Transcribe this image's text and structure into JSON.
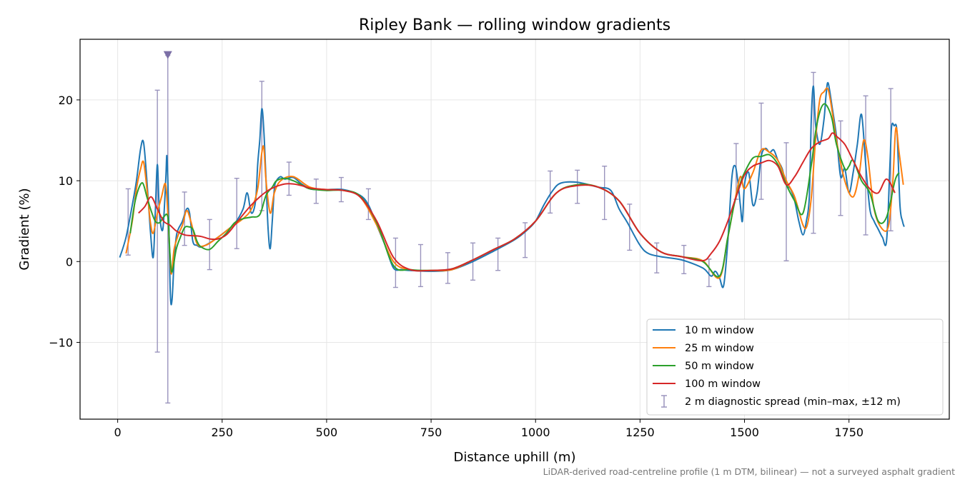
{
  "chart_data": {
    "type": "line",
    "title": "Ripley Bank — rolling window gradients",
    "xlabel": "Distance uphill (m)",
    "ylabel": "Gradient (%)",
    "xlim": [
      -90,
      1990
    ],
    "ylim": [
      -19.5,
      27.5
    ],
    "xticks": [
      0,
      250,
      500,
      750,
      1000,
      1250,
      1500,
      1750
    ],
    "yticks": [
      -10,
      0,
      10,
      20
    ],
    "ytick_labels": [
      "−10",
      "0",
      "10",
      "20"
    ],
    "grid": true,
    "legend_position": "lower-right",
    "series": [
      {
        "name": "10 m window",
        "color": "#1f77b4",
        "x": [
          5,
          20,
          35,
          45,
          55,
          62,
          70,
          78,
          85,
          90,
          95,
          100,
          108,
          115,
          118,
          122,
          126,
          130,
          135,
          140,
          145,
          155,
          165,
          172,
          180,
          190,
          200,
          220,
          240,
          260,
          280,
          300,
          310,
          320,
          330,
          335,
          340,
          345,
          350,
          355,
          360,
          365,
          370,
          375,
          380,
          390,
          400,
          420,
          440,
          460,
          480,
          500,
          540,
          580,
          600,
          620,
          640,
          660,
          680,
          700,
          750,
          800,
          850,
          900,
          950,
          980,
          1000,
          1020,
          1040,
          1060,
          1100,
          1150,
          1180,
          1200,
          1220,
          1250,
          1270,
          1300,
          1350,
          1400,
          1420,
          1430,
          1440,
          1450,
          1460,
          1470,
          1478,
          1485,
          1490,
          1495,
          1500,
          1510,
          1520,
          1530,
          1540,
          1550,
          1560,
          1570,
          1580,
          1590,
          1600,
          1610,
          1620,
          1630,
          1640,
          1648,
          1655,
          1660,
          1665,
          1670,
          1680,
          1690,
          1695,
          1700,
          1710,
          1720,
          1730,
          1740,
          1750,
          1760,
          1770,
          1780,
          1790,
          1800,
          1810,
          1820,
          1830,
          1840,
          1848,
          1852,
          1858,
          1865,
          1872,
          1878,
          1882
        ],
        "y": [
          0.5,
          3,
          7,
          10,
          14,
          14.7,
          10,
          4,
          0.5,
          6,
          12,
          6,
          4,
          10,
          13,
          6,
          -4,
          -4.8,
          0,
          3,
          4,
          5,
          6.5,
          6,
          2.5,
          2,
          1.8,
          2.3,
          3,
          3.8,
          4.7,
          6.5,
          8.5,
          6,
          7.5,
          12,
          15,
          18.9,
          16,
          10,
          4,
          1.6,
          5,
          9,
          10,
          10.5,
          10.2,
          10.4,
          9.6,
          9,
          8.9,
          8.9,
          8.9,
          8.2,
          7,
          4.5,
          2,
          -0.8,
          -1,
          -1.1,
          -1.2,
          -1,
          0,
          1.3,
          2.7,
          3.9,
          5,
          7,
          8.7,
          9.7,
          9.8,
          9.2,
          8.8,
          6.5,
          4.8,
          2,
          1,
          0.6,
          0.2,
          -0.8,
          -1.8,
          -1.2,
          -2,
          -3,
          2.5,
          10.5,
          11.8,
          9.5,
          7,
          5,
          9.5,
          11,
          7,
          8.5,
          13,
          14,
          13.5,
          13.8,
          12.5,
          11.5,
          9.5,
          9,
          7.5,
          5,
          3.3,
          5,
          8,
          18,
          21.7,
          17,
          14.5,
          17.5,
          20.5,
          22.1,
          19,
          15.5,
          10.5,
          11.5,
          8.5,
          11,
          14.5,
          18.2,
          12,
          6.5,
          5,
          4,
          3,
          2.6,
          12,
          16.7,
          16.8,
          16,
          7,
          5,
          4.3
        ]
      },
      {
        "name": "25 m window",
        "color": "#ff7f0e",
        "x": [
          20,
          35,
          45,
          55,
          62,
          70,
          78,
          85,
          95,
          105,
          115,
          122,
          128,
          135,
          145,
          155,
          165,
          175,
          190,
          210,
          240,
          270,
          300,
          320,
          335,
          345,
          350,
          355,
          365,
          375,
          390,
          420,
          460,
          500,
          540,
          580,
          620,
          660,
          700,
          750,
          800,
          850,
          900,
          950,
          1000,
          1050,
          1100,
          1150,
          1200,
          1250,
          1300,
          1350,
          1400,
          1440,
          1460,
          1475,
          1490,
          1500,
          1520,
          1540,
          1560,
          1580,
          1600,
          1620,
          1640,
          1650,
          1660,
          1670,
          1680,
          1690,
          1700,
          1710,
          1720,
          1740,
          1760,
          1775,
          1785,
          1795,
          1810,
          1830,
          1845,
          1855,
          1862,
          1870,
          1880
        ],
        "y": [
          1,
          5,
          9,
          11.5,
          12.3,
          9,
          5,
          3.5,
          6,
          8,
          9.5,
          4,
          -1.5,
          1.5,
          3.3,
          4.5,
          6.3,
          5,
          2.2,
          2,
          3,
          4.2,
          5.3,
          6.5,
          9,
          13.5,
          14,
          10,
          6,
          8.5,
          10,
          10.5,
          9.2,
          8.9,
          8.8,
          8,
          4.5,
          0,
          -1,
          -1.1,
          -1,
          0.2,
          1.5,
          2.8,
          5,
          8.5,
          9.5,
          9.2,
          7.5,
          3.5,
          1.2,
          0.6,
          0.1,
          -2,
          3,
          7,
          10.5,
          9,
          11,
          13.8,
          13.5,
          12.5,
          10,
          8,
          4.5,
          4.5,
          8,
          15,
          20,
          21,
          21.3,
          18.5,
          15,
          10,
          8,
          11,
          15,
          13,
          6.5,
          4,
          4.5,
          10,
          16.5,
          13.5,
          9.5
        ]
      },
      {
        "name": "50 m window",
        "color": "#2ca02c",
        "x": [
          30,
          40,
          50,
          60,
          70,
          80,
          90,
          100,
          110,
          120,
          125,
          130,
          140,
          150,
          160,
          170,
          180,
          190,
          200,
          220,
          240,
          260,
          280,
          300,
          320,
          340,
          355,
          370,
          380,
          400,
          420,
          440,
          460,
          500,
          540,
          580,
          620,
          660,
          700,
          750,
          800,
          850,
          900,
          950,
          1000,
          1050,
          1100,
          1150,
          1200,
          1250,
          1300,
          1350,
          1400,
          1440,
          1460,
          1475,
          1490,
          1500,
          1520,
          1540,
          1560,
          1580,
          1600,
          1620,
          1640,
          1660,
          1670,
          1680,
          1690,
          1700,
          1710,
          1720,
          1740,
          1750,
          1760,
          1780,
          1800,
          1820,
          1840,
          1860,
          1870
        ],
        "y": [
          3.5,
          7,
          9,
          9.7,
          8,
          6.3,
          5,
          4.8,
          5.5,
          5.5,
          1,
          -1.3,
          1.5,
          3,
          4.2,
          4.3,
          4,
          2.5,
          1.8,
          1.5,
          2.5,
          3.5,
          4.8,
          5.3,
          5.5,
          5.8,
          8.2,
          9.2,
          10,
          10.3,
          10,
          9.5,
          9,
          8.8,
          8.8,
          8.1,
          4.8,
          -0.5,
          -1,
          -1.1,
          -0.9,
          0.2,
          1.5,
          2.8,
          5,
          8.5,
          9.5,
          9.2,
          7.5,
          3.5,
          1.2,
          0.6,
          0,
          -1.8,
          3,
          7,
          9.7,
          11,
          12.8,
          13,
          13.2,
          12,
          9.5,
          7.5,
          6,
          12,
          16,
          18.5,
          19.5,
          19,
          17.5,
          14.5,
          11.5,
          11.8,
          12.5,
          10,
          8.5,
          5,
          5.5,
          10,
          11
        ]
      },
      {
        "name": "100 m window",
        "color": "#d62728",
        "x": [
          50,
          65,
          80,
          95,
          110,
          125,
          140,
          160,
          180,
          200,
          220,
          240,
          260,
          280,
          300,
          320,
          340,
          360,
          380,
          400,
          420,
          440,
          460,
          500,
          540,
          580,
          620,
          660,
          700,
          750,
          800,
          850,
          900,
          950,
          1000,
          1050,
          1100,
          1150,
          1200,
          1250,
          1300,
          1350,
          1400,
          1420,
          1440,
          1460,
          1480,
          1500,
          1520,
          1540,
          1560,
          1580,
          1600,
          1620,
          1640,
          1660,
          1680,
          1700,
          1710,
          1720,
          1740,
          1760,
          1780,
          1800,
          1820,
          1840,
          1860
        ],
        "y": [
          6,
          6.8,
          8,
          6.5,
          5,
          4.5,
          3.8,
          3.3,
          3.2,
          3.1,
          2.8,
          2.8,
          3.3,
          4.5,
          5.8,
          7,
          8,
          8.8,
          9.3,
          9.6,
          9.6,
          9.4,
          9.1,
          8.9,
          8.8,
          8,
          5,
          0.5,
          -1,
          -1.1,
          -0.9,
          0.2,
          1.5,
          2.8,
          5,
          8.5,
          9.4,
          9.2,
          7.5,
          3.5,
          1.2,
          0.6,
          0.1,
          1,
          2.5,
          5,
          8,
          10.7,
          11.8,
          12.2,
          12.5,
          11.8,
          9.5,
          10.5,
          12.3,
          14,
          14.8,
          15.2,
          15.9,
          15.5,
          14.5,
          12.5,
          10.5,
          9,
          8.5,
          10.2,
          8.5
        ]
      }
    ],
    "error_bars": {
      "name": "2 m diagnostic spread (min–max, ±12 m)",
      "color": "#9a94bd",
      "x": [
        25,
        95,
        120,
        160,
        220,
        285,
        345,
        410,
        475,
        535,
        600,
        665,
        725,
        790,
        850,
        910,
        975,
        1035,
        1100,
        1165,
        1225,
        1290,
        1355,
        1415,
        1480,
        1540,
        1600,
        1665,
        1730,
        1790,
        1850
      ],
      "lower": [
        0.8,
        -11.2,
        -17.5,
        2,
        -1,
        1.6,
        6.3,
        8.2,
        7.2,
        7.4,
        5.2,
        -3.2,
        -3.1,
        -2.7,
        -2.3,
        -1.1,
        0.5,
        6,
        7.2,
        5.2,
        1.4,
        -1.4,
        -1.5,
        -3.1,
        7.7,
        7.7,
        0.1,
        3.5,
        5.7,
        3.3,
        3.8
      ],
      "upper": [
        9,
        21.2,
        25.5,
        8.6,
        5.2,
        10.3,
        22.3,
        12.3,
        10.2,
        10.4,
        9,
        2.9,
        2.1,
        1.1,
        2.3,
        2.9,
        4.8,
        11.2,
        11.3,
        11.8,
        7.1,
        2.3,
        2,
        0.3,
        14.6,
        19.6,
        14.7,
        23.4,
        17.4,
        20.5,
        21.4
      ],
      "clipped_marker": {
        "x": 120,
        "y": 25.5,
        "symbol": "down-triangle",
        "color": "#7b6fa6"
      }
    }
  },
  "footnote": "LiDAR-derived road-centreline profile (1 m DTM, bilinear) — not a surveyed asphalt gradient"
}
